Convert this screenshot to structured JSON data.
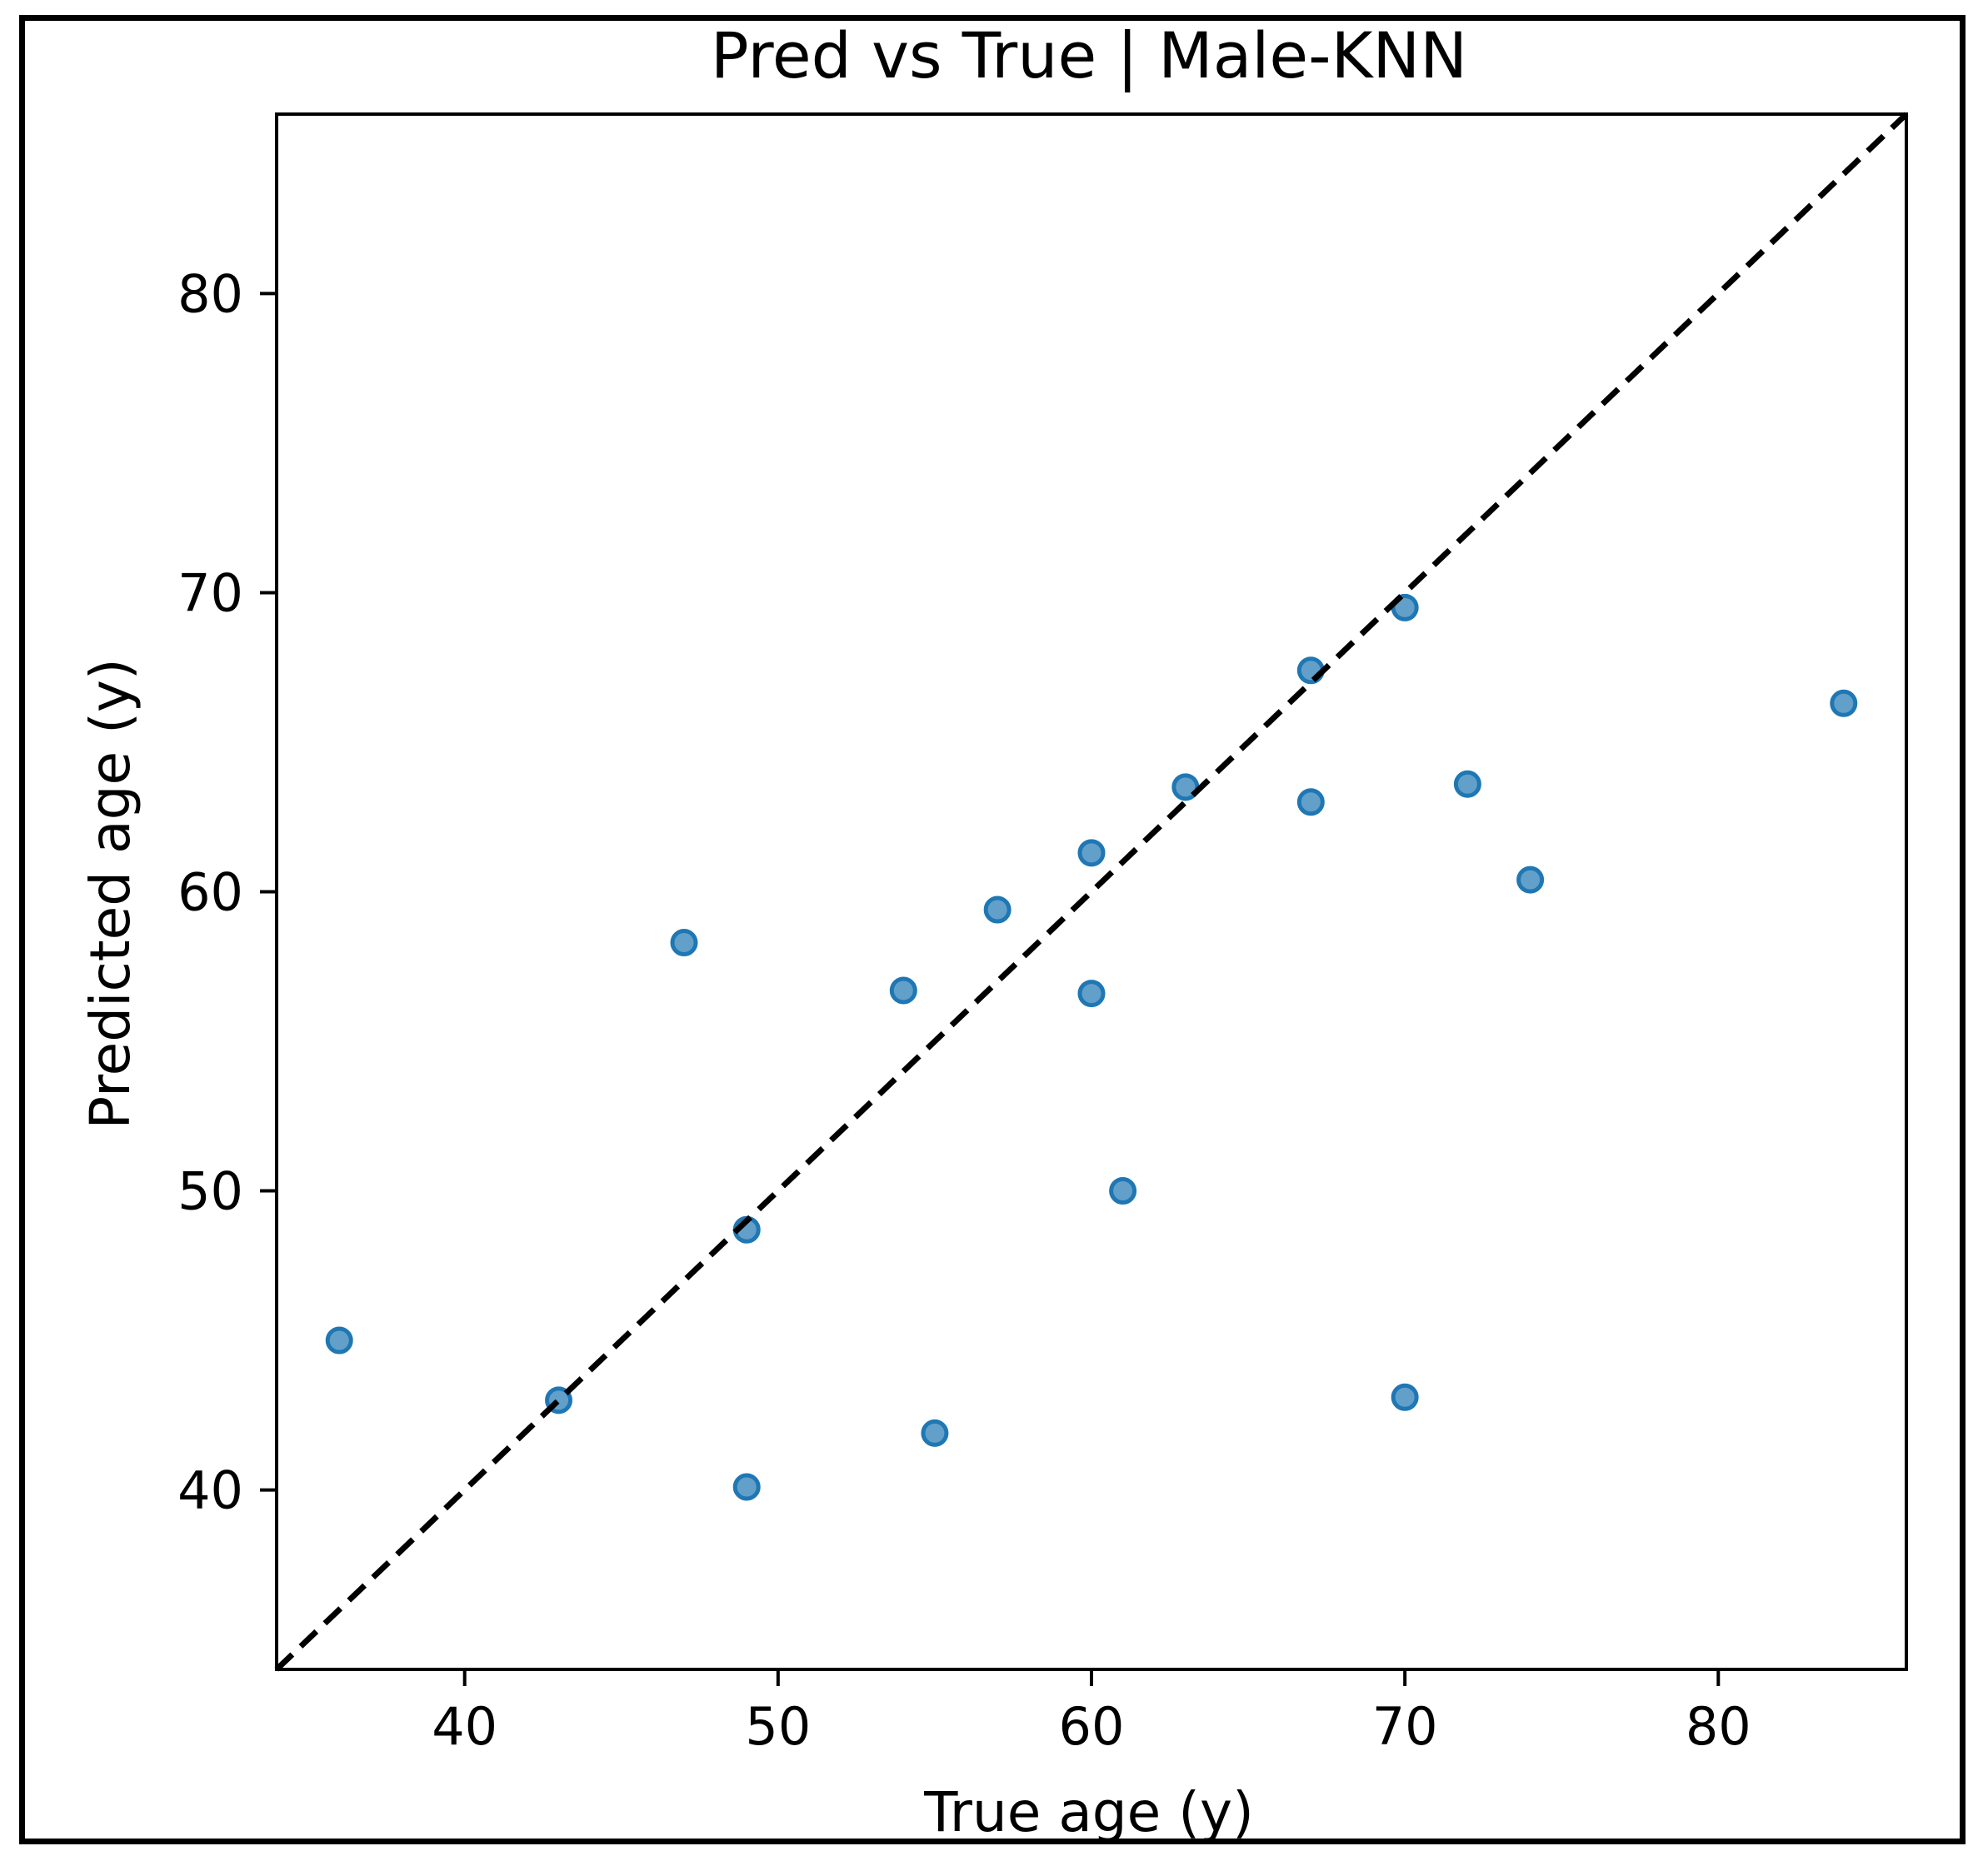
{
  "chart_data": {
    "type": "scatter",
    "title": "Pred vs True | Male-KNN",
    "xlabel": "True age (y)",
    "ylabel": "Predicted age (y)",
    "xlim": [
      34,
      86
    ],
    "ylim": [
      34,
      86
    ],
    "xticks": [
      40,
      50,
      60,
      70,
      80
    ],
    "yticks": [
      40,
      50,
      60,
      70,
      80
    ],
    "grid": false,
    "reference_line": {
      "style": "dashed",
      "color": "#000000"
    },
    "marker_color": "#1f77b4",
    "points": [
      {
        "x": 36,
        "y": 45.0
      },
      {
        "x": 43,
        "y": 43.0
      },
      {
        "x": 47,
        "y": 58.3
      },
      {
        "x": 49,
        "y": 48.7
      },
      {
        "x": 49,
        "y": 40.1
      },
      {
        "x": 54,
        "y": 56.7
      },
      {
        "x": 55,
        "y": 41.9
      },
      {
        "x": 57,
        "y": 59.4
      },
      {
        "x": 60,
        "y": 61.3
      },
      {
        "x": 60,
        "y": 56.6
      },
      {
        "x": 61,
        "y": 50.0
      },
      {
        "x": 63,
        "y": 63.5
      },
      {
        "x": 67,
        "y": 67.4
      },
      {
        "x": 67,
        "y": 63.0
      },
      {
        "x": 70,
        "y": 69.5
      },
      {
        "x": 70,
        "y": 43.1
      },
      {
        "x": 72,
        "y": 63.6
      },
      {
        "x": 74,
        "y": 60.4
      },
      {
        "x": 84,
        "y": 66.3
      }
    ]
  }
}
